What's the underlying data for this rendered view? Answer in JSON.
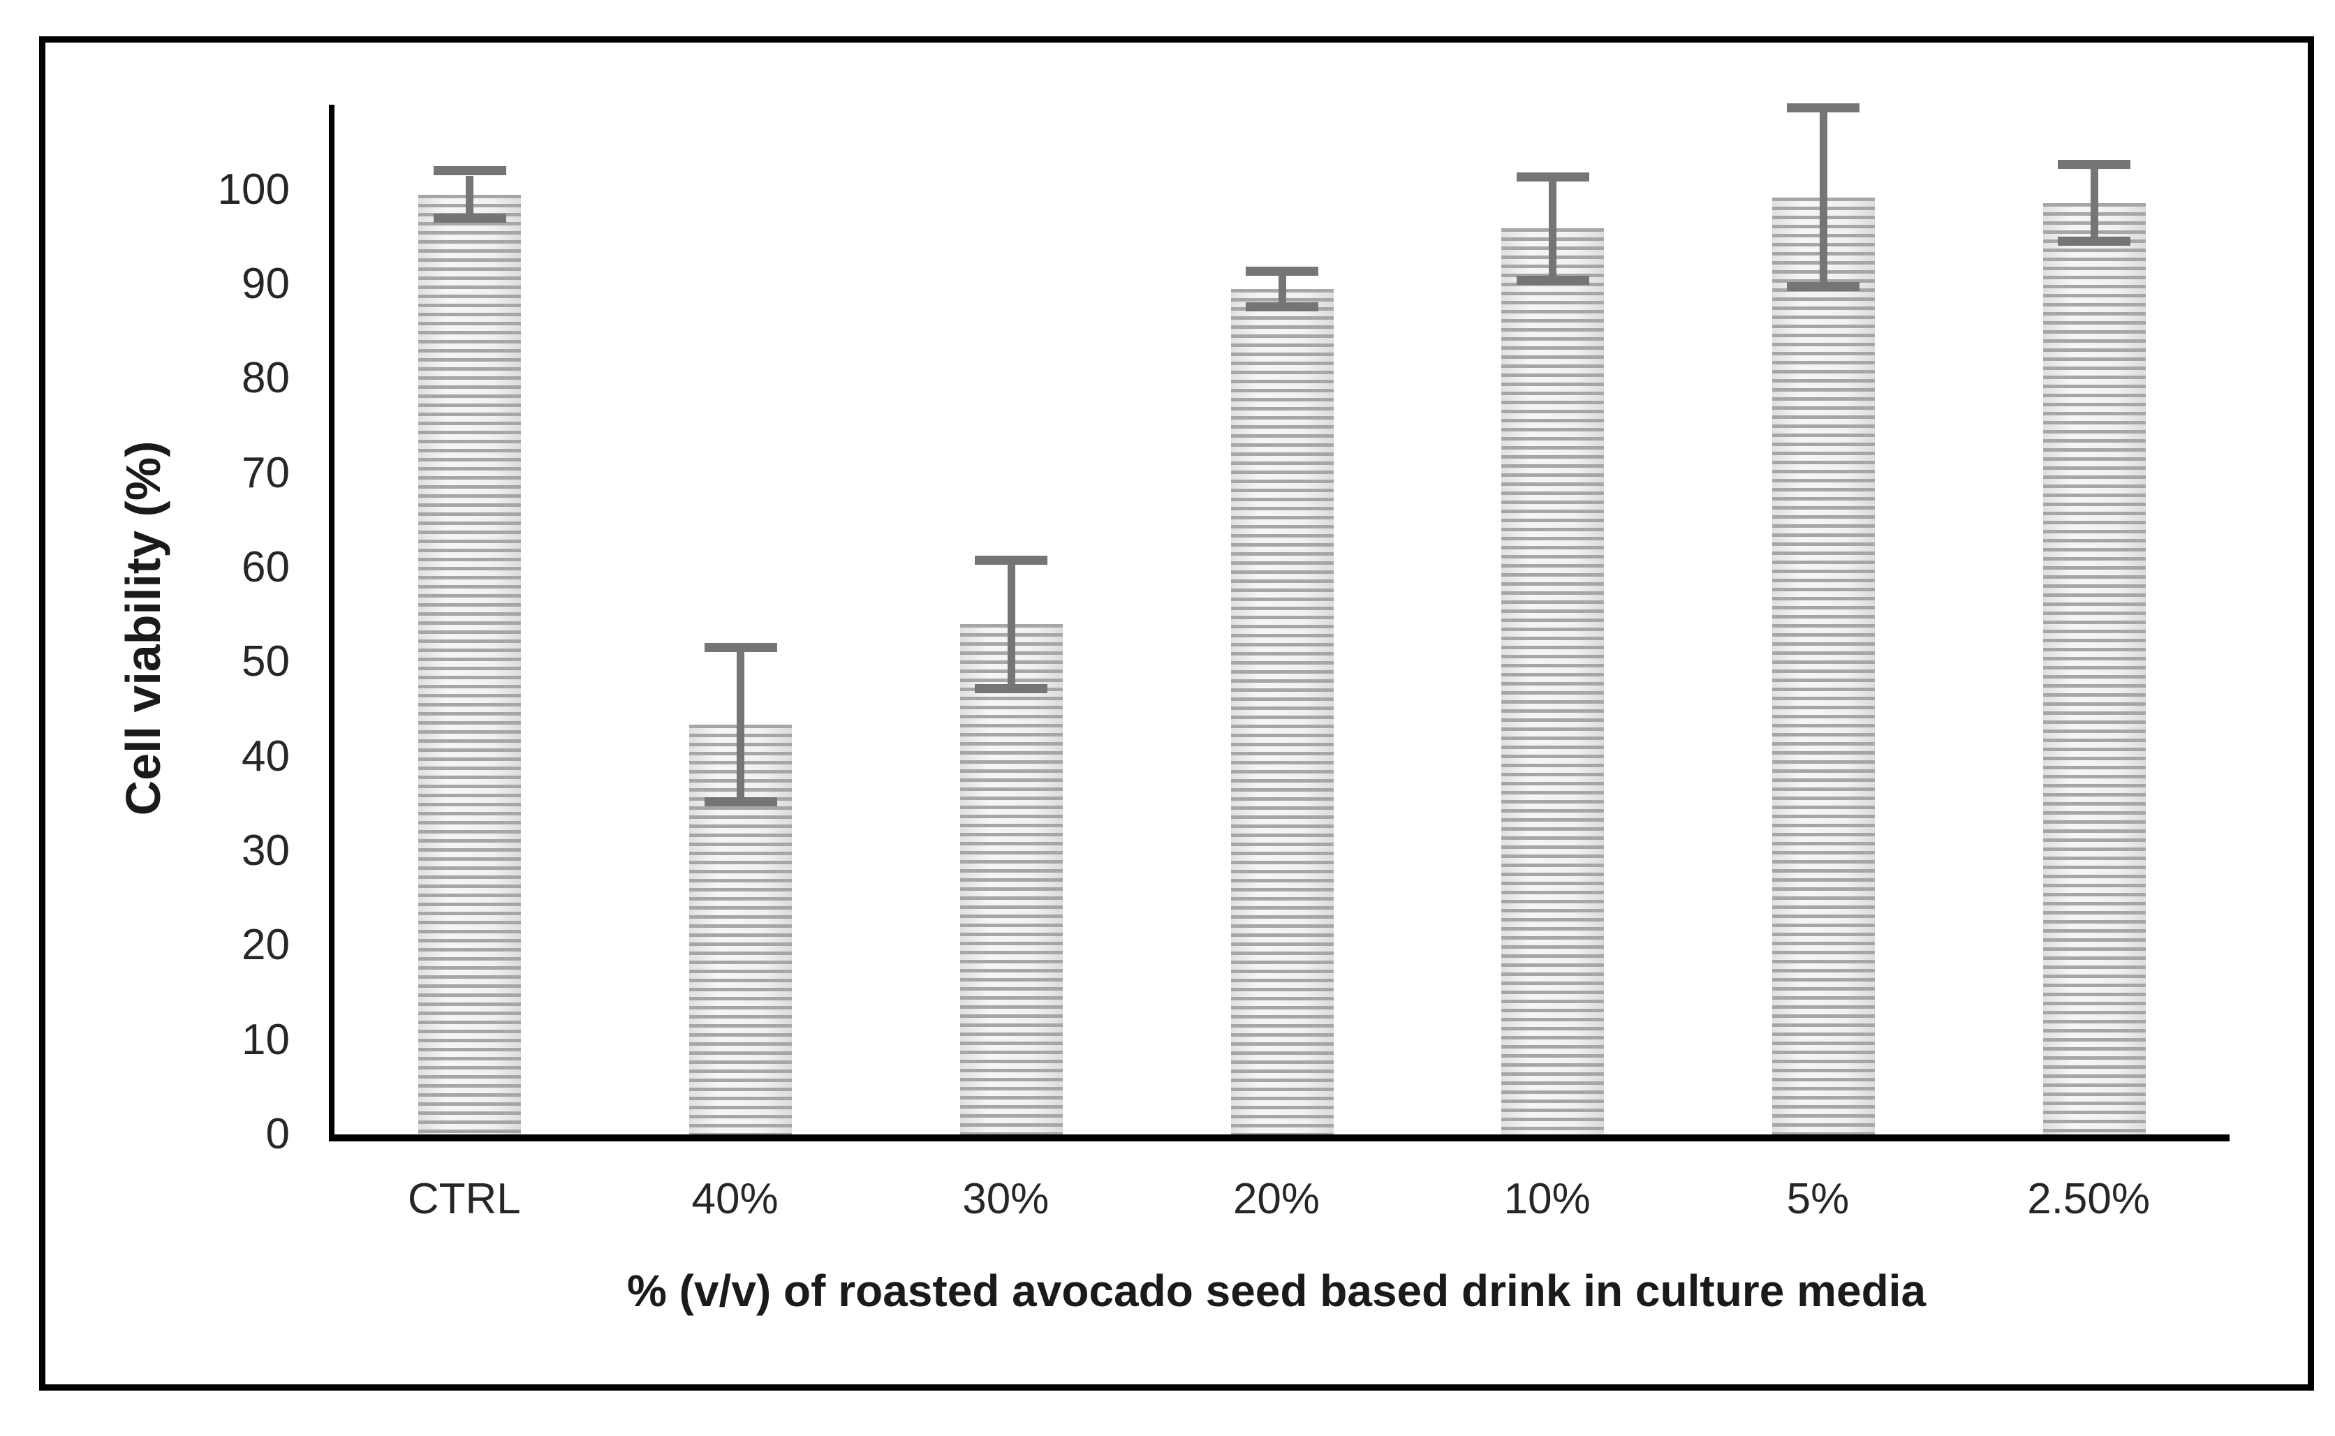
{
  "figure": {
    "background": "#ffffff",
    "border_color": "#000000"
  },
  "chart_data": {
    "type": "bar",
    "title": "",
    "categories": [
      "CTRL",
      "40%",
      "30%",
      "20%",
      "10%",
      "5%",
      "2.50%"
    ],
    "values": [
      99.5,
      43.4,
      54.0,
      89.5,
      95.9,
      99.2,
      98.6
    ],
    "error_bars": [
      2.0,
      7.7,
      6.3,
      1.4,
      5.0,
      9.0,
      3.6
    ],
    "xlabel": "% (v/v) of roasted avocado seed based drink in culture media",
    "ylabel": "Cell viability (%)",
    "ylim": [
      0,
      110
    ],
    "yticks": [
      0,
      10,
      20,
      30,
      40,
      50,
      60,
      70,
      80,
      90,
      100
    ],
    "grid": false,
    "legend_position": "none",
    "bar_pattern": "horizontal-stripes",
    "bar_stripe_color": "#a6a6a6",
    "bar_background_color": "#f1f1f1",
    "error_bar_color": "#757575",
    "axis_color": "#000000",
    "tick_label_color": "#262626"
  }
}
